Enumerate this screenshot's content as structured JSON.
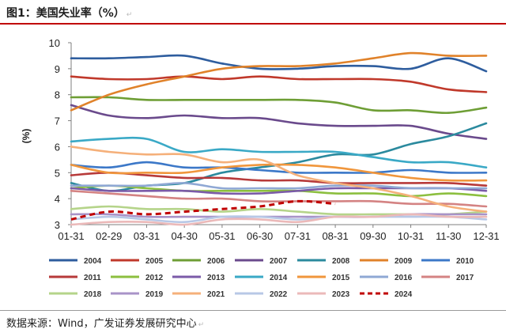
{
  "header": {
    "title": "图1：美国失业率（%）",
    "return_mark": "↵"
  },
  "footer": {
    "source": "数据来源：Wind，广发证券发展研究中心",
    "return_mark": "↵"
  },
  "chart_data": {
    "type": "line",
    "title": "图1：美国失业率（%）",
    "xlabel": "",
    "ylabel": "(%)",
    "ylim": [
      3,
      10
    ],
    "yticks": [
      "3",
      "4",
      "5",
      "6",
      "7",
      "8",
      "9",
      "10"
    ],
    "categories": [
      "01-31",
      "02-29",
      "03-31",
      "04-30",
      "05-31",
      "06-30",
      "07-31",
      "08-31",
      "09-30",
      "10-31",
      "11-30",
      "12-31"
    ],
    "legend_position": "bottom",
    "series": [
      {
        "name": "2004",
        "color": "#2e5d9e",
        "dashed": false,
        "values": [
          9.4,
          9.4,
          9.45,
          9.5,
          9.2,
          9.0,
          9.0,
          9.1,
          9.1,
          9.0,
          9.4,
          8.9
        ]
      },
      {
        "name": "2005",
        "color": "#c0392b",
        "dashed": false,
        "values": [
          8.7,
          8.6,
          8.6,
          8.7,
          8.6,
          8.7,
          8.6,
          8.6,
          8.6,
          8.5,
          8.2,
          8.1
        ]
      },
      {
        "name": "2006",
        "color": "#6e9e35",
        "dashed": false,
        "values": [
          7.9,
          7.9,
          7.8,
          7.8,
          7.8,
          7.8,
          7.8,
          7.7,
          7.4,
          7.4,
          7.3,
          7.5
        ]
      },
      {
        "name": "2007",
        "color": "#6a4a8c",
        "dashed": false,
        "values": [
          7.6,
          7.2,
          7.1,
          7.2,
          7.1,
          7.1,
          6.9,
          6.8,
          6.8,
          6.8,
          6.5,
          6.3
        ]
      },
      {
        "name": "2008",
        "color": "#2b8a9e",
        "dashed": false,
        "values": [
          4.6,
          4.3,
          4.5,
          4.6,
          5.0,
          5.2,
          5.4,
          5.7,
          5.7,
          6.1,
          6.4,
          6.9
        ]
      },
      {
        "name": "2009",
        "color": "#e0822a",
        "dashed": false,
        "values": [
          7.4,
          8.0,
          8.4,
          8.7,
          9.0,
          9.1,
          9.1,
          9.2,
          9.4,
          9.6,
          9.5,
          9.5
        ]
      },
      {
        "name": "2010",
        "color": "#3c78c8",
        "dashed": false,
        "values": [
          5.3,
          5.2,
          5.4,
          5.2,
          5.2,
          5.1,
          5.0,
          5.0,
          5.0,
          5.1,
          5.0,
          5.0
        ]
      },
      {
        "name": "2011",
        "color": "#b73a3a",
        "dashed": false,
        "values": [
          4.9,
          5.0,
          4.9,
          4.8,
          4.8,
          4.7,
          4.7,
          4.6,
          4.6,
          4.6,
          4.6,
          4.5
        ]
      },
      {
        "name": "2012",
        "color": "#8cbf3f",
        "dashed": false,
        "values": [
          4.4,
          4.5,
          4.4,
          4.3,
          4.3,
          4.3,
          4.3,
          4.2,
          4.2,
          4.1,
          4.2,
          4.1
        ]
      },
      {
        "name": "2013",
        "color": "#7b5ba8",
        "dashed": false,
        "values": [
          4.4,
          4.3,
          4.3,
          4.3,
          4.2,
          4.2,
          4.3,
          4.4,
          4.4,
          4.4,
          4.4,
          4.3
        ]
      },
      {
        "name": "2014",
        "color": "#3aa9c6",
        "dashed": false,
        "values": [
          6.2,
          6.3,
          6.3,
          5.8,
          5.9,
          5.8,
          5.8,
          5.8,
          5.6,
          5.4,
          5.4,
          5.2
        ]
      },
      {
        "name": "2015",
        "color": "#f0963c",
        "dashed": false,
        "values": [
          5.3,
          5.0,
          5.0,
          5.0,
          5.2,
          5.3,
          5.3,
          5.2,
          5.0,
          4.8,
          4.7,
          4.7
        ]
      },
      {
        "name": "2016",
        "color": "#8fa8d4",
        "dashed": false,
        "values": [
          4.5,
          4.5,
          4.5,
          4.6,
          4.4,
          4.4,
          4.4,
          4.5,
          4.5,
          4.4,
          4.4,
          4.4
        ]
      },
      {
        "name": "2017",
        "color": "#d48383",
        "dashed": false,
        "values": [
          4.3,
          4.2,
          4.1,
          4.0,
          4.0,
          3.9,
          3.9,
          3.9,
          3.9,
          3.8,
          3.8,
          3.7
        ]
      },
      {
        "name": "2018",
        "color": "#b5d48a",
        "dashed": false,
        "values": [
          3.6,
          3.7,
          3.6,
          3.6,
          3.5,
          3.6,
          3.5,
          3.4,
          3.4,
          3.4,
          3.4,
          3.5
        ]
      },
      {
        "name": "2019",
        "color": "#a893c8",
        "dashed": false,
        "values": [
          3.4,
          3.4,
          3.3,
          3.3,
          3.3,
          3.3,
          3.3,
          3.3,
          3.3,
          3.4,
          3.4,
          3.4
        ]
      },
      {
        "name": "2021",
        "color": "#f5b07a",
        "dashed": false,
        "values": [
          6.0,
          5.8,
          5.7,
          5.7,
          5.4,
          5.5,
          4.9,
          4.6,
          4.4,
          4.1,
          3.7,
          3.5
        ]
      },
      {
        "name": "2022",
        "color": "#b8c8e6",
        "dashed": false,
        "values": [
          3.2,
          3.3,
          3.2,
          3.1,
          3.3,
          3.3,
          3.2,
          3.3,
          3.3,
          3.3,
          3.3,
          3.2
        ]
      },
      {
        "name": "2023",
        "color": "#ebb9b9",
        "dashed": false,
        "values": [
          3.0,
          3.1,
          3.1,
          3.0,
          3.2,
          3.2,
          3.1,
          3.3,
          3.3,
          3.4,
          3.3,
          3.3
        ]
      },
      {
        "name": "2024",
        "color": "#c00000",
        "dashed": true,
        "values": [
          3.2,
          3.5,
          3.4,
          3.5,
          3.6,
          3.7,
          3.9,
          3.8,
          null,
          null,
          null,
          null
        ]
      }
    ]
  }
}
